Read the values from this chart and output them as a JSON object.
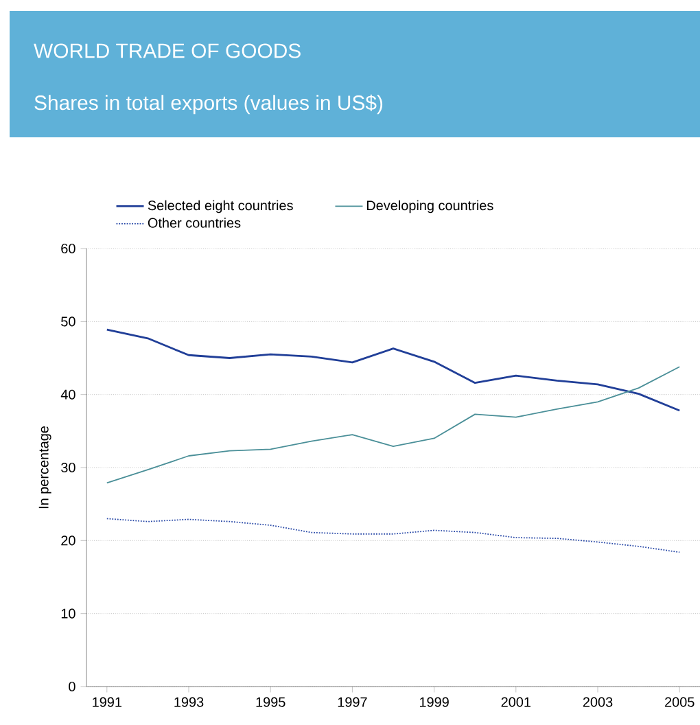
{
  "chart_data": {
    "type": "line",
    "title": "WORLD TRADE OF GOODS",
    "subtitle": "Shares in total exports (values in US$)",
    "ylabel": "In percentage",
    "x": [
      1991,
      1992,
      1993,
      1994,
      1995,
      1996,
      1997,
      1998,
      1999,
      2000,
      2001,
      2002,
      2003,
      2004,
      2005
    ],
    "series": [
      {
        "name": "Selected eight countries",
        "color": "#213f98",
        "line_style": "solid",
        "values": [
          48.9,
          47.7,
          45.4,
          45.0,
          45.5,
          45.2,
          44.4,
          46.3,
          44.5,
          41.6,
          42.6,
          41.9,
          41.4,
          40.1,
          37.8
        ]
      },
      {
        "name": "Developing countries",
        "color": "#4a8f98",
        "line_style": "solid",
        "values": [
          27.9,
          29.7,
          31.6,
          32.3,
          32.5,
          33.6,
          34.5,
          32.9,
          34.0,
          37.3,
          36.9,
          38.0,
          39.0,
          40.9,
          43.8
        ]
      },
      {
        "name": "Other countries",
        "color": "#2a4aa8",
        "line_style": "dotted",
        "values": [
          23.0,
          22.6,
          22.9,
          22.6,
          22.1,
          21.1,
          20.9,
          20.9,
          21.4,
          21.1,
          20.4,
          20.3,
          19.8,
          19.2,
          18.4
        ]
      }
    ],
    "xlim": [
      1990.5,
      2005.5
    ],
    "xticks": [
      1991,
      1993,
      1995,
      1997,
      1999,
      2001,
      2003,
      2005
    ],
    "ylim": [
      0,
      60
    ],
    "yticks": [
      0,
      10,
      20,
      30,
      40,
      50,
      60
    ],
    "grid": "y",
    "legend": "top left"
  }
}
